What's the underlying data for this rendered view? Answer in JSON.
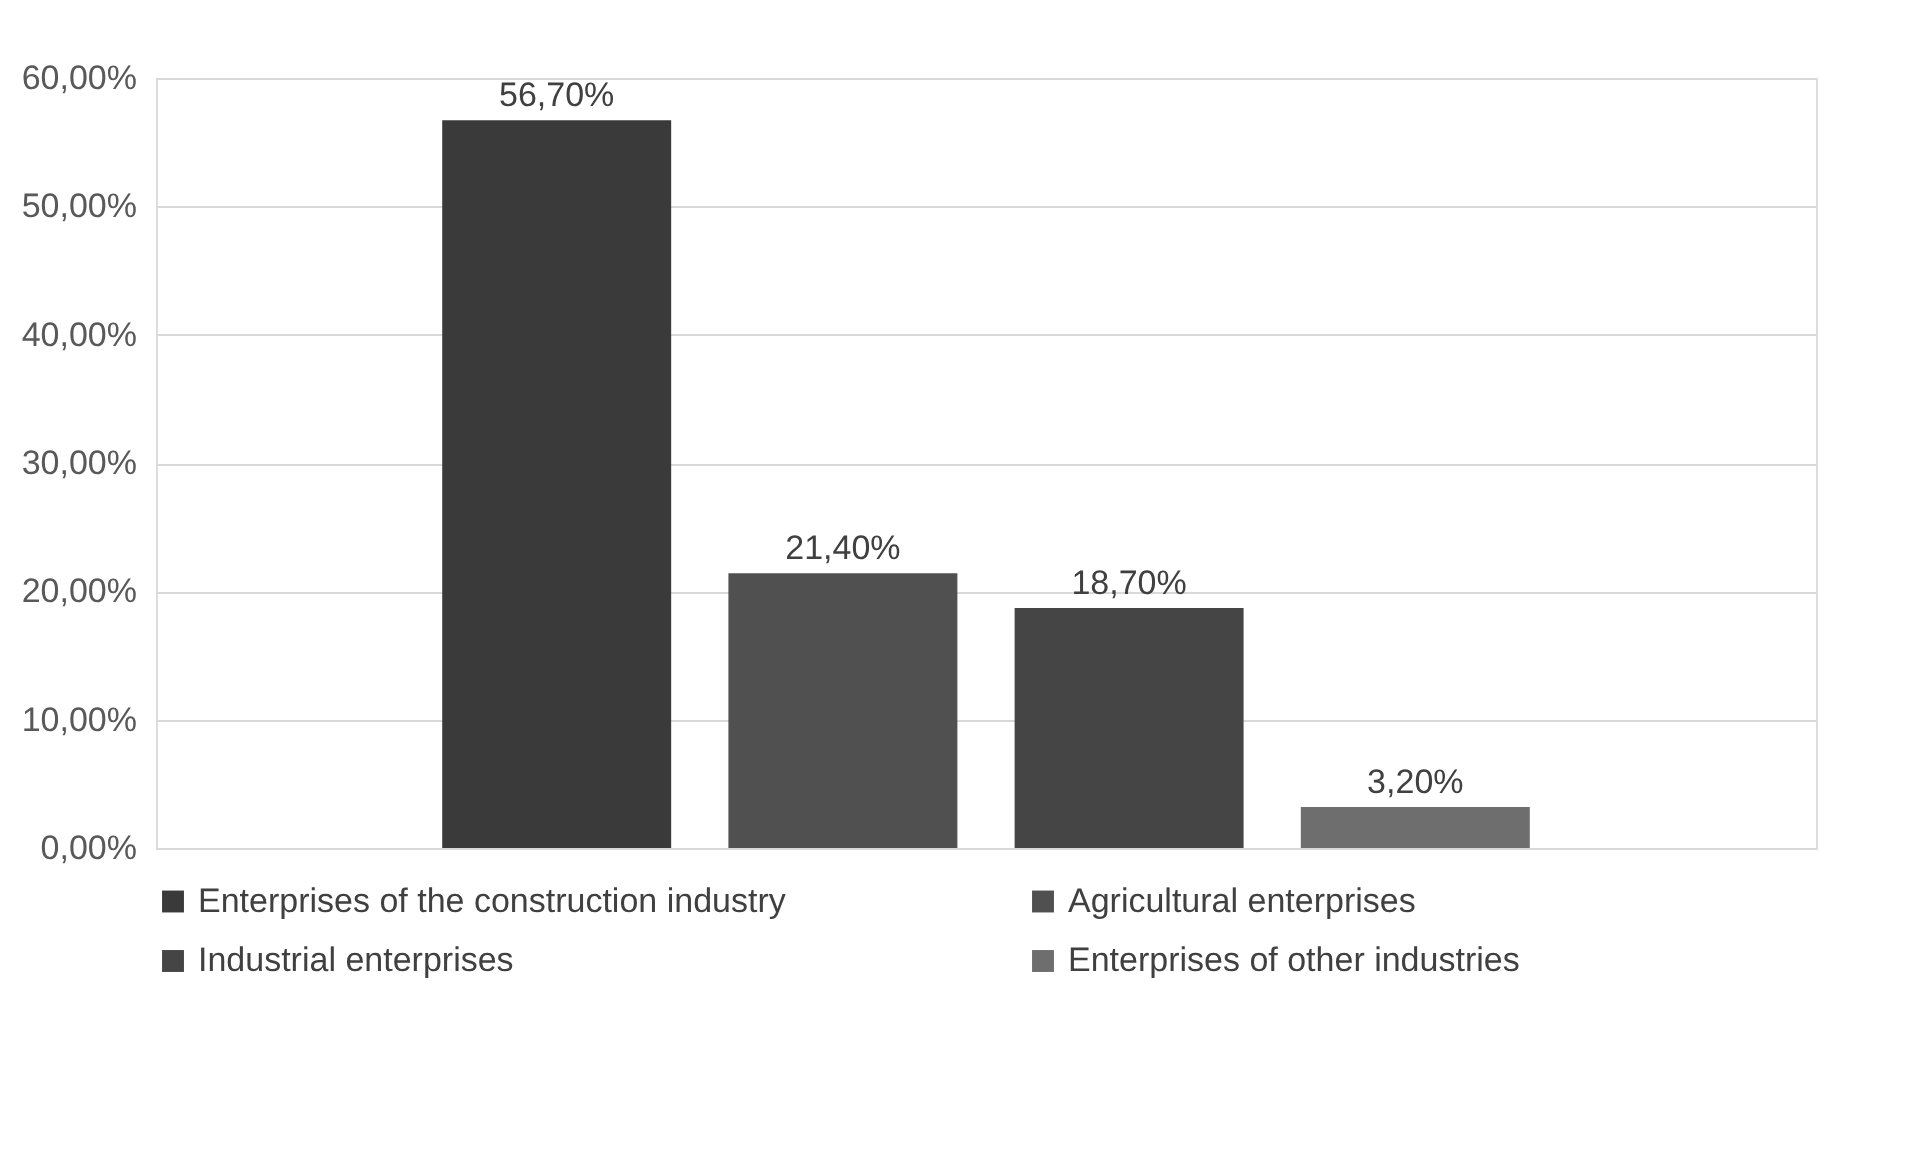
{
  "chart_data": {
    "type": "bar",
    "categories": [
      null
    ],
    "series": [
      {
        "name": "Enterprises of the construction industry",
        "color": "#3a3a3a",
        "values": [
          56.7
        ],
        "value_labels": [
          "56,70%"
        ]
      },
      {
        "name": "Agricultural enterprises",
        "color": "#505050",
        "values": [
          21.4
        ],
        "value_labels": [
          "21,40%"
        ]
      },
      {
        "name": "Industrial enterprises",
        "color": "#454545",
        "values": [
          18.7
        ],
        "value_labels": [
          "18,70%"
        ]
      },
      {
        "name": "Enterprises of other industries",
        "color": "#6e6e6e",
        "values": [
          3.2
        ],
        "value_labels": [
          "3,20%"
        ]
      }
    ],
    "ylim": [
      0,
      60
    ],
    "yticks": [
      {
        "value": 0,
        "label": "0,00%"
      },
      {
        "value": 10,
        "label": "10,00%"
      },
      {
        "value": 20,
        "label": "20,00%"
      },
      {
        "value": 30,
        "label": "30,00%"
      },
      {
        "value": 40,
        "label": "40,00%"
      },
      {
        "value": 50,
        "label": "50,00%"
      },
      {
        "value": 60,
        "label": "60,00%"
      }
    ],
    "grid": "y",
    "legend": "bottom",
    "tick_labels": "y"
  }
}
